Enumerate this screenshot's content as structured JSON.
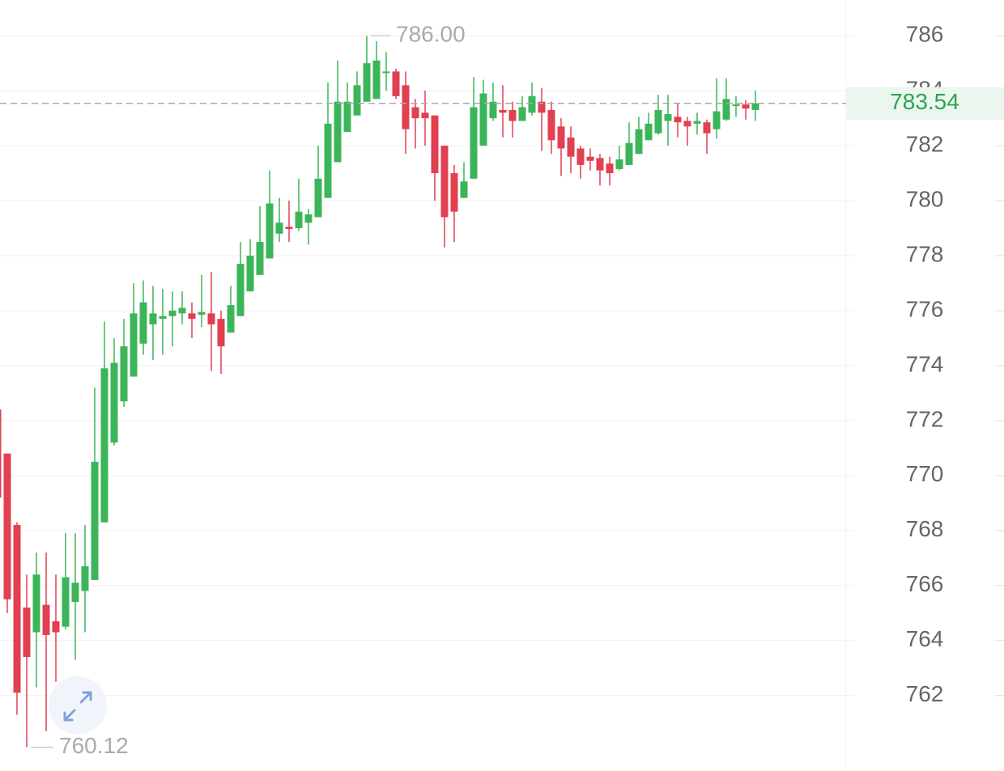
{
  "chart_data": {
    "type": "candlestick",
    "series": [
      {
        "open": [
          772.4,
          770.8,
          768.2,
          765.2,
          764.3,
          765.3,
          764.7,
          764.5,
          765.4,
          765.8,
          766.2,
          768.3,
          771.2,
          772.7,
          773.6,
          774.8,
          775.5,
          775.7,
          775.8,
          775.9,
          775.9,
          775.85,
          775.9,
          775.7,
          775.2,
          775.8,
          776.7,
          777.3,
          777.9,
          778.8,
          779.05,
          779,
          779.2,
          779.4,
          780.1,
          781.4,
          782.5,
          783.1,
          783.6,
          783.7,
          784.65,
          784.7,
          784.2,
          783.4,
          783.2,
          783.1,
          782,
          781,
          780.1,
          780.8,
          782,
          783,
          783.3,
          783.3,
          782.9,
          783.2,
          783.6,
          783.3,
          782.7,
          782.3,
          781.9,
          781.6,
          781.55,
          781.35,
          781.15,
          781.3,
          781.7,
          782.2,
          782.45,
          782.9,
          783.05,
          782.9,
          782.8,
          782.85,
          782.6,
          782.95,
          783.45,
          783.5,
          783.3
        ],
        "high": [
          772.6,
          770.8,
          768.3,
          766.4,
          767.2,
          767.2,
          766.4,
          767.9,
          767.9,
          768.2,
          773.2,
          775.6,
          775,
          775.7,
          777,
          777.1,
          776.9,
          776.8,
          776.7,
          776.7,
          776.3,
          777.3,
          777.4,
          776,
          776.9,
          778.5,
          778.6,
          779.8,
          781.1,
          780.1,
          780,
          780.8,
          779.7,
          782,
          784.3,
          785.1,
          784.3,
          784.7,
          786,
          785.8,
          785.4,
          784.8,
          784.7,
          783.7,
          784,
          783.1,
          782,
          781.3,
          781.4,
          784.5,
          784.4,
          784.3,
          784.2,
          783.6,
          783.8,
          784.3,
          784.1,
          783.6,
          783,
          782.7,
          782,
          781.9,
          781.7,
          781.6,
          782,
          782.85,
          783.05,
          783.2,
          783.85,
          783.85,
          783.55,
          783.05,
          783.2,
          782.95,
          784.45,
          784.45,
          783.8,
          783.65,
          784
        ],
        "low": [
          769.2,
          765,
          761.3,
          760.12,
          762.3,
          760.7,
          762.5,
          764.4,
          763.3,
          764.3,
          766.2,
          768.3,
          771.1,
          772.5,
          773.6,
          774.4,
          774.2,
          774.4,
          774.7,
          775.5,
          775,
          775.4,
          773.8,
          773.7,
          775.2,
          775.8,
          776.7,
          777.3,
          777.9,
          778.5,
          778.5,
          778.9,
          778.4,
          779.4,
          780.1,
          781.4,
          782.5,
          783.1,
          783.6,
          783.7,
          784,
          783.7,
          781.7,
          781.9,
          782,
          780,
          778.3,
          778.5,
          780.1,
          780.8,
          782,
          782.9,
          782.3,
          782.3,
          782.9,
          783.1,
          781.8,
          781.7,
          780.9,
          781,
          780.8,
          781.1,
          780.55,
          780.55,
          781.1,
          781.3,
          781.7,
          782.2,
          782.4,
          782,
          782.3,
          782,
          782.4,
          781.7,
          782.25,
          782.9,
          783.05,
          782.95,
          782.9
        ],
        "close": [
          769.2,
          765.5,
          762.1,
          763.4,
          766.4,
          764.2,
          764.3,
          766.3,
          766.1,
          766.7,
          770.5,
          773.9,
          774.1,
          774.7,
          775.9,
          776.3,
          775.9,
          775.8,
          776,
          776.1,
          775.7,
          775.95,
          775.5,
          774.7,
          776.2,
          777.7,
          778,
          778.5,
          779.9,
          779.2,
          778.97,
          779.6,
          779.5,
          780.8,
          782.8,
          783.6,
          783.6,
          784.2,
          785,
          785.1,
          784.7,
          783.8,
          782.6,
          783,
          783,
          781,
          779.4,
          779.6,
          780.7,
          783.4,
          783.9,
          783.6,
          783.2,
          782.9,
          783.4,
          783.8,
          783.2,
          782.2,
          781.9,
          781.6,
          781.3,
          781.45,
          781.1,
          781,
          781.5,
          782.1,
          782.6,
          782.8,
          783.3,
          783.15,
          782.85,
          782.7,
          782.9,
          782.45,
          783.25,
          783.7,
          783.5,
          783.35,
          783.54
        ]
      }
    ],
    "up_color": "#3cb55a",
    "down_color": "#e04050",
    "ylim": [
      759.4,
      787.3
    ],
    "yticks": [
      762,
      764,
      766,
      768,
      770,
      772,
      774,
      776,
      778,
      780,
      782,
      784,
      786
    ],
    "grid": true,
    "high_label": {
      "value": 786,
      "label": "786.00"
    },
    "low_label": 760.12,
    "last_price": 783.54,
    "last_price_color": "#2ea44f"
  }
}
